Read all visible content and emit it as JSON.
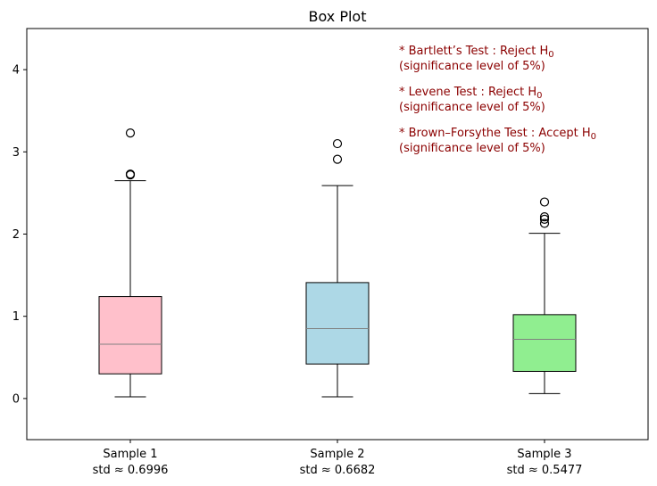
{
  "chart_data": {
    "type": "box",
    "title": "Box Plot",
    "xlabel": "",
    "ylabel": "",
    "ylim": [
      -0.5,
      4.5
    ],
    "yticks": [
      0,
      1,
      2,
      3,
      4
    ],
    "grid": false,
    "categories": [
      "Sample 1",
      "Sample 2",
      "Sample 3"
    ],
    "category_sublabels": [
      "std ≈ 0.6996",
      "std ≈ 0.6682",
      "std ≈ 0.5477"
    ],
    "boxes": [
      {
        "name": "Sample 1",
        "whisker_low": 0.02,
        "q1": 0.3,
        "median": 0.66,
        "q3": 1.24,
        "whisker_high": 2.65,
        "outliers": [
          2.72,
          2.73,
          3.23
        ],
        "color": "#ffc0cb"
      },
      {
        "name": "Sample 2",
        "whisker_low": 0.02,
        "q1": 0.42,
        "median": 0.85,
        "q3": 1.41,
        "whisker_high": 2.59,
        "outliers": [
          2.91,
          3.1
        ],
        "color": "#add8e6"
      },
      {
        "name": "Sample 3",
        "whisker_low": 0.06,
        "q1": 0.33,
        "median": 0.72,
        "q3": 1.02,
        "whisker_high": 2.01,
        "outliers": [
          2.13,
          2.18,
          2.21,
          2.39
        ],
        "color": "#90ee90"
      }
    ],
    "annotations": [
      {
        "text": "* Bartlett’s Test : Reject H",
        "subscript": "0",
        "line2": "(significance level of 5%)"
      },
      {
        "text": "* Levene Test : Reject H",
        "subscript": "0",
        "line2": "(significance level of 5%)"
      },
      {
        "text": "* Brown–Forsythe Test : Accept H",
        "subscript": "0",
        "line2": "(significance level of 5%)"
      }
    ],
    "annotation_color": "#8b0000",
    "median_color": "#808080"
  }
}
